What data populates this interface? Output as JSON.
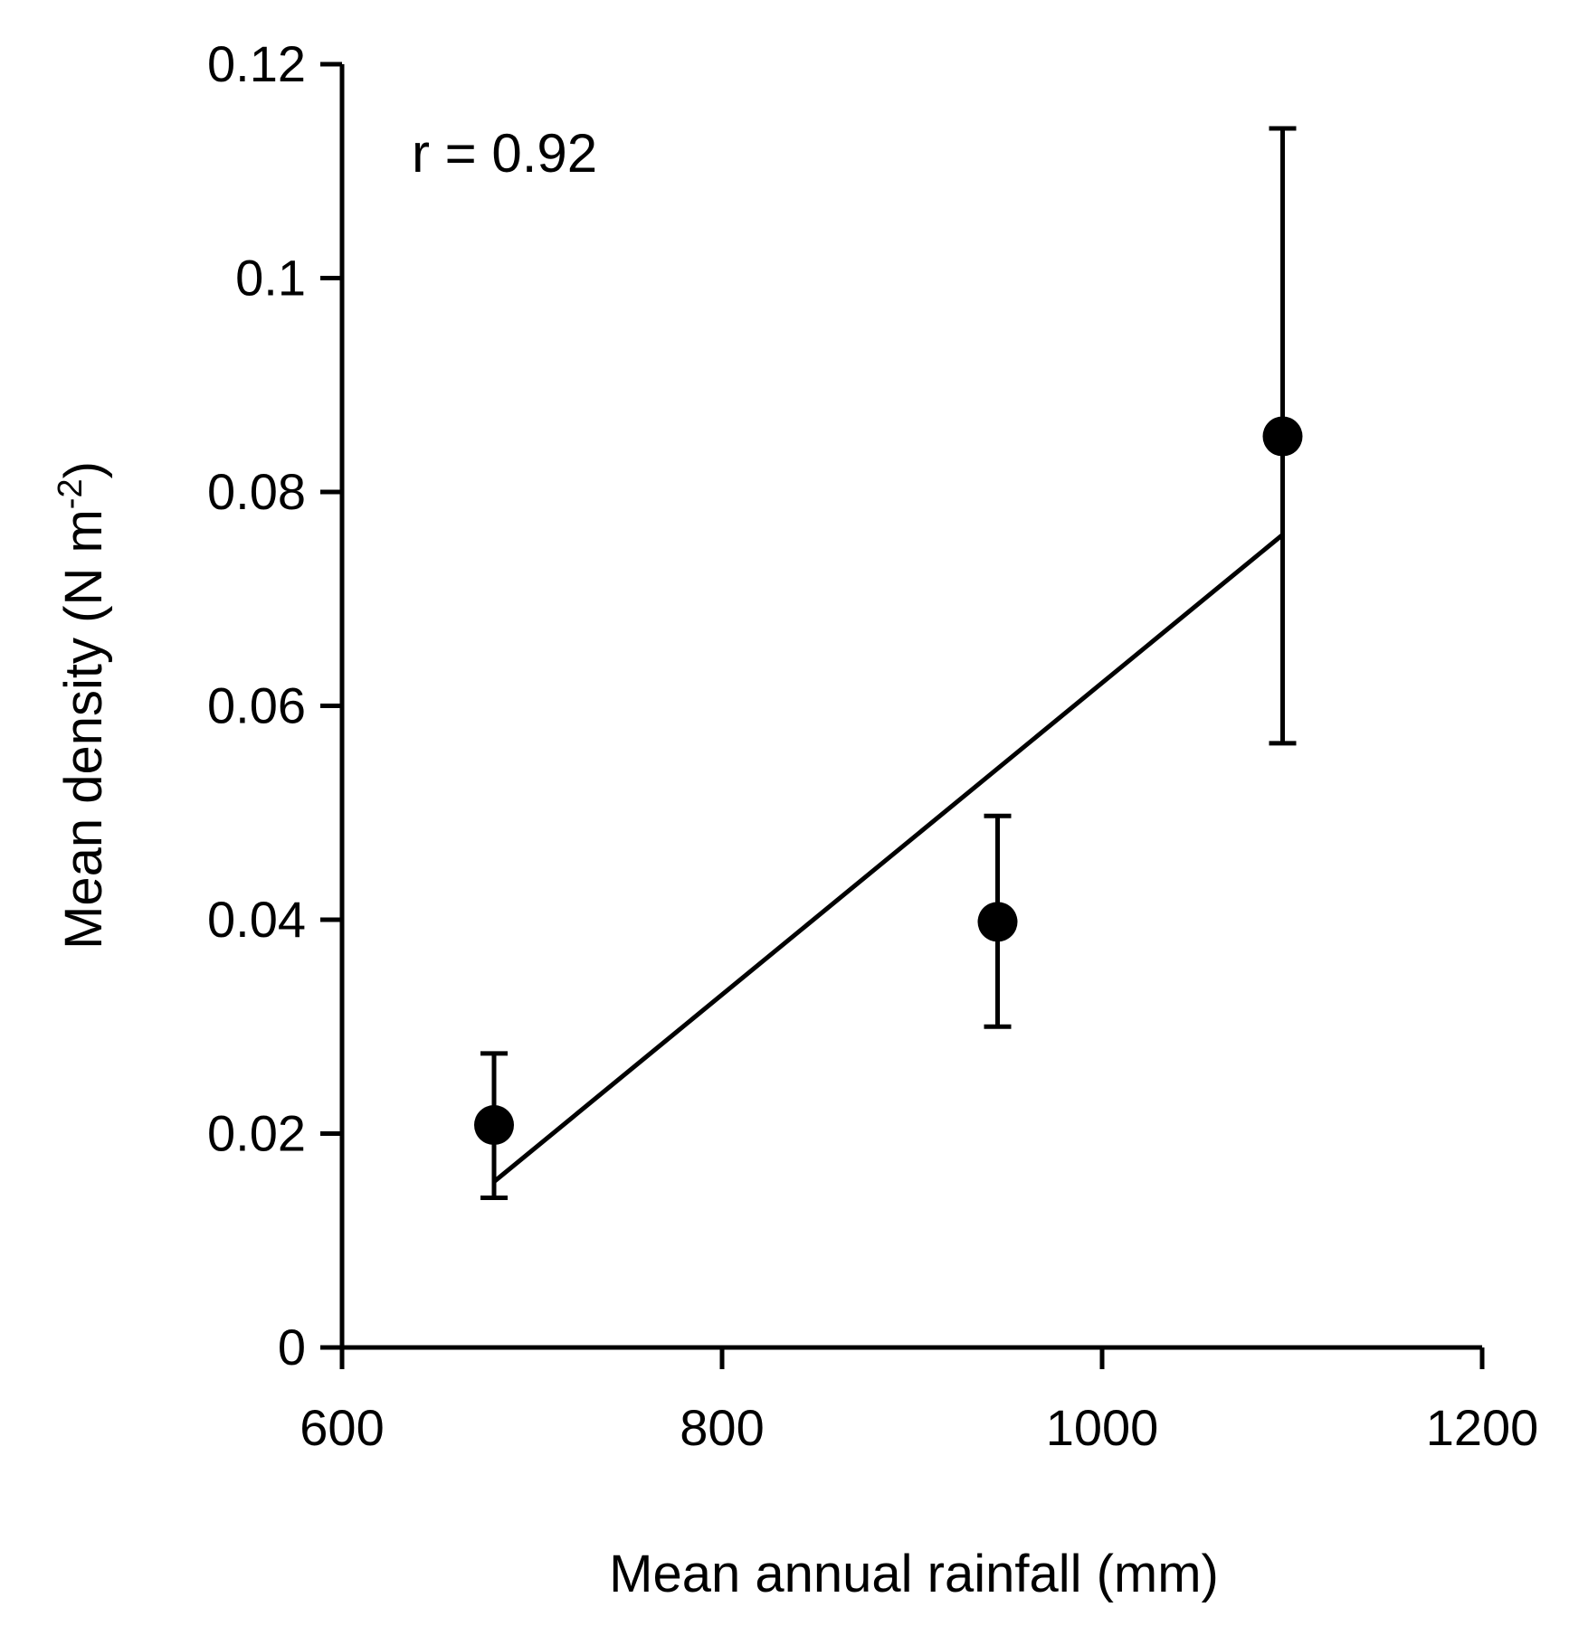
{
  "chart_data": {
    "type": "scatter",
    "title": "",
    "xlabel": "Mean annual rainfall (mm)",
    "ylabel_main": "Mean density (N m",
    "ylabel_sup": "-2",
    "ylabel_close": ")",
    "xlim": [
      600,
      1200
    ],
    "ylim": [
      0,
      0.12
    ],
    "xticks": [
      600,
      800,
      1000,
      1200
    ],
    "xtick_labels": [
      "600",
      "800",
      "1000",
      "1200"
    ],
    "yticks": [
      0,
      0.02,
      0.04,
      0.06,
      0.08,
      0.1,
      0.12
    ],
    "ytick_labels": [
      "0",
      "0.02",
      "0.04",
      "0.06",
      "0.08",
      "0.1",
      "0.12"
    ],
    "grid": false,
    "annotation": "r = 0.92",
    "series": [
      {
        "name": "Mean density",
        "points": [
          {
            "x": 680,
            "y": 0.0208,
            "err_low": 0.014,
            "err_high": 0.0275
          },
          {
            "x": 945,
            "y": 0.0398,
            "err_low": 0.03,
            "err_high": 0.0497
          },
          {
            "x": 1095,
            "y": 0.0852,
            "err_low": 0.0565,
            "err_high": 0.114
          }
        ]
      }
    ],
    "trendline": {
      "type": "linear",
      "x_start": 680,
      "y_start": 0.0155,
      "x_end": 1095,
      "y_end": 0.076
    },
    "marker_color": "#000000",
    "line_color": "#000000"
  }
}
